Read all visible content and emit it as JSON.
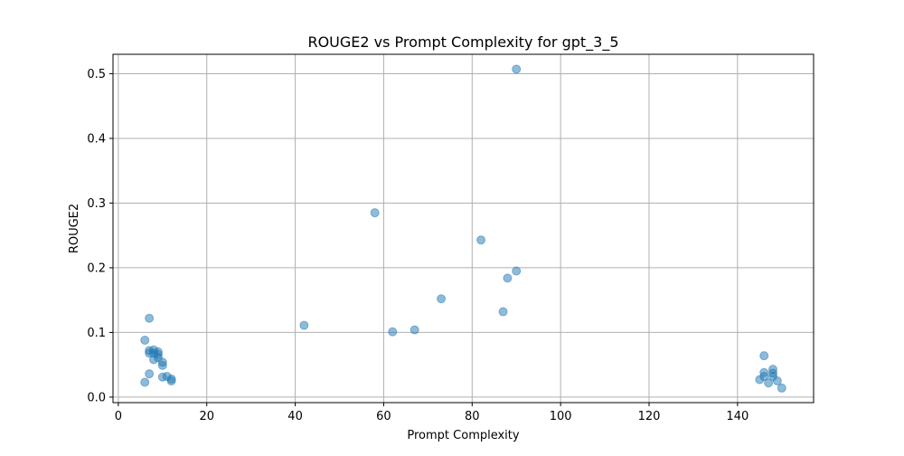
{
  "chart_data": {
    "type": "scatter",
    "title": "ROUGE2 vs Prompt Complexity for gpt_3_5",
    "xlabel": "Prompt Complexity",
    "ylabel": "ROUGE2",
    "xlim": [
      -1.2,
      157.2
    ],
    "ylim": [
      -0.0085,
      0.53
    ],
    "xticks": [
      0,
      20,
      40,
      60,
      80,
      100,
      120,
      140
    ],
    "yticks": [
      0.0,
      0.1,
      0.2,
      0.3,
      0.4,
      0.5
    ],
    "xtick_labels": [
      "0",
      "20",
      "40",
      "60",
      "80",
      "100",
      "120",
      "140"
    ],
    "ytick_labels": [
      "0.0",
      "0.1",
      "0.2",
      "0.3",
      "0.4",
      "0.5"
    ],
    "grid": true,
    "point_color": "#1f77b4",
    "point_alpha": 0.5,
    "series": [
      {
        "points": [
          [
            6,
            0.088
          ],
          [
            6,
            0.023
          ],
          [
            7,
            0.122
          ],
          [
            7,
            0.072
          ],
          [
            7,
            0.068
          ],
          [
            7,
            0.036
          ],
          [
            8,
            0.073
          ],
          [
            8,
            0.068
          ],
          [
            8,
            0.058
          ],
          [
            9,
            0.07
          ],
          [
            9,
            0.066
          ],
          [
            9,
            0.061
          ],
          [
            10,
            0.054
          ],
          [
            10,
            0.049
          ],
          [
            10,
            0.031
          ],
          [
            11,
            0.032
          ],
          [
            12,
            0.028
          ],
          [
            12,
            0.025
          ],
          [
            42,
            0.111
          ],
          [
            58,
            0.285
          ],
          [
            62,
            0.101
          ],
          [
            67,
            0.104
          ],
          [
            73,
            0.152
          ],
          [
            82,
            0.243
          ],
          [
            87,
            0.132
          ],
          [
            88,
            0.184
          ],
          [
            90,
            0.507
          ],
          [
            90,
            0.195
          ],
          [
            145,
            0.027
          ],
          [
            146,
            0.064
          ],
          [
            146,
            0.038
          ],
          [
            146,
            0.032
          ],
          [
            147,
            0.022
          ],
          [
            148,
            0.043
          ],
          [
            148,
            0.037
          ],
          [
            148,
            0.032
          ],
          [
            149,
            0.025
          ],
          [
            150,
            0.014
          ]
        ]
      }
    ]
  }
}
